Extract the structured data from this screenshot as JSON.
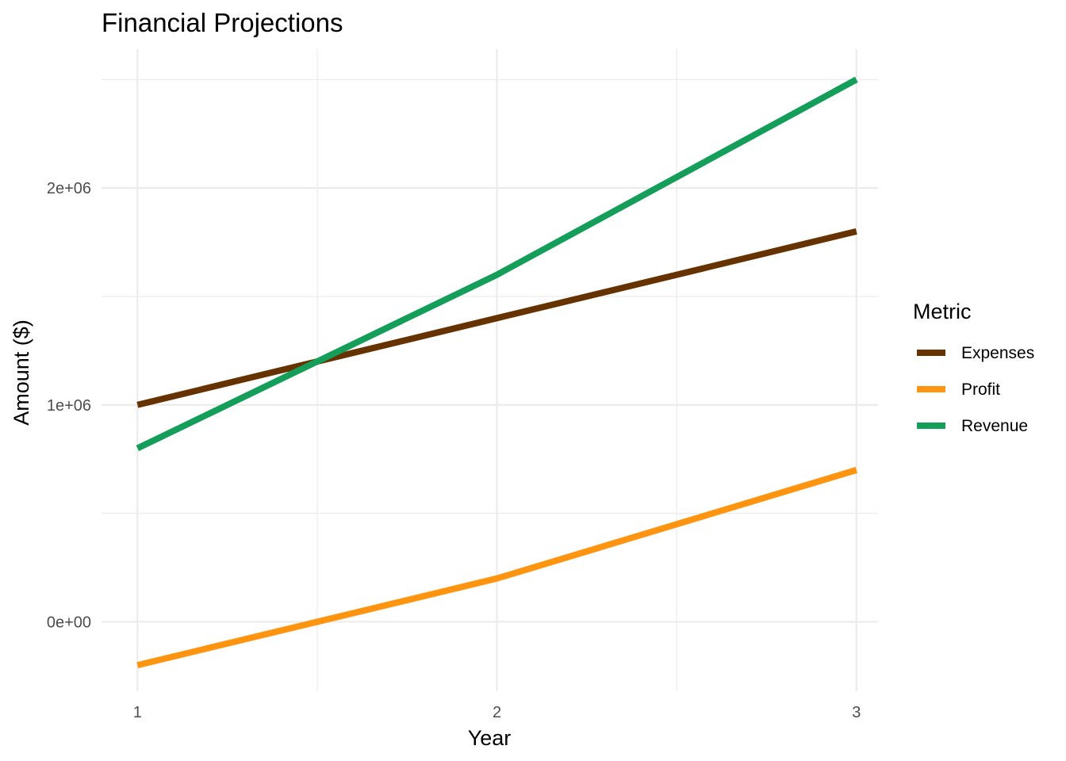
{
  "chart_data": {
    "type": "line",
    "title": "Financial Projections",
    "xlabel": "Year",
    "ylabel": "Amount ($)",
    "x": [
      1,
      2,
      3
    ],
    "xlim": [
      0.9,
      3.06
    ],
    "ylim": [
      -320000,
      2640000
    ],
    "x_ticks": [
      {
        "value": 1,
        "label": "1"
      },
      {
        "value": 2,
        "label": "2"
      },
      {
        "value": 3,
        "label": "3"
      }
    ],
    "x_minor": [
      1.5,
      2.5
    ],
    "y_ticks": [
      {
        "value": 0,
        "label": "0e+00"
      },
      {
        "value": 1000000,
        "label": "1e+06"
      },
      {
        "value": 2000000,
        "label": "2e+06"
      }
    ],
    "y_minor": [
      500000,
      1500000,
      2500000
    ],
    "grid": true,
    "legend": {
      "title": "Metric",
      "position": "right"
    },
    "series": [
      {
        "name": "Expenses",
        "color": "#663300",
        "values": [
          1000000,
          1400000,
          1800000
        ]
      },
      {
        "name": "Profit",
        "color": "#ff9411",
        "values": [
          -200000,
          200000,
          700000
        ]
      },
      {
        "name": "Revenue",
        "color": "#149e5a",
        "values": [
          800000,
          1600000,
          2500000
        ]
      }
    ]
  }
}
